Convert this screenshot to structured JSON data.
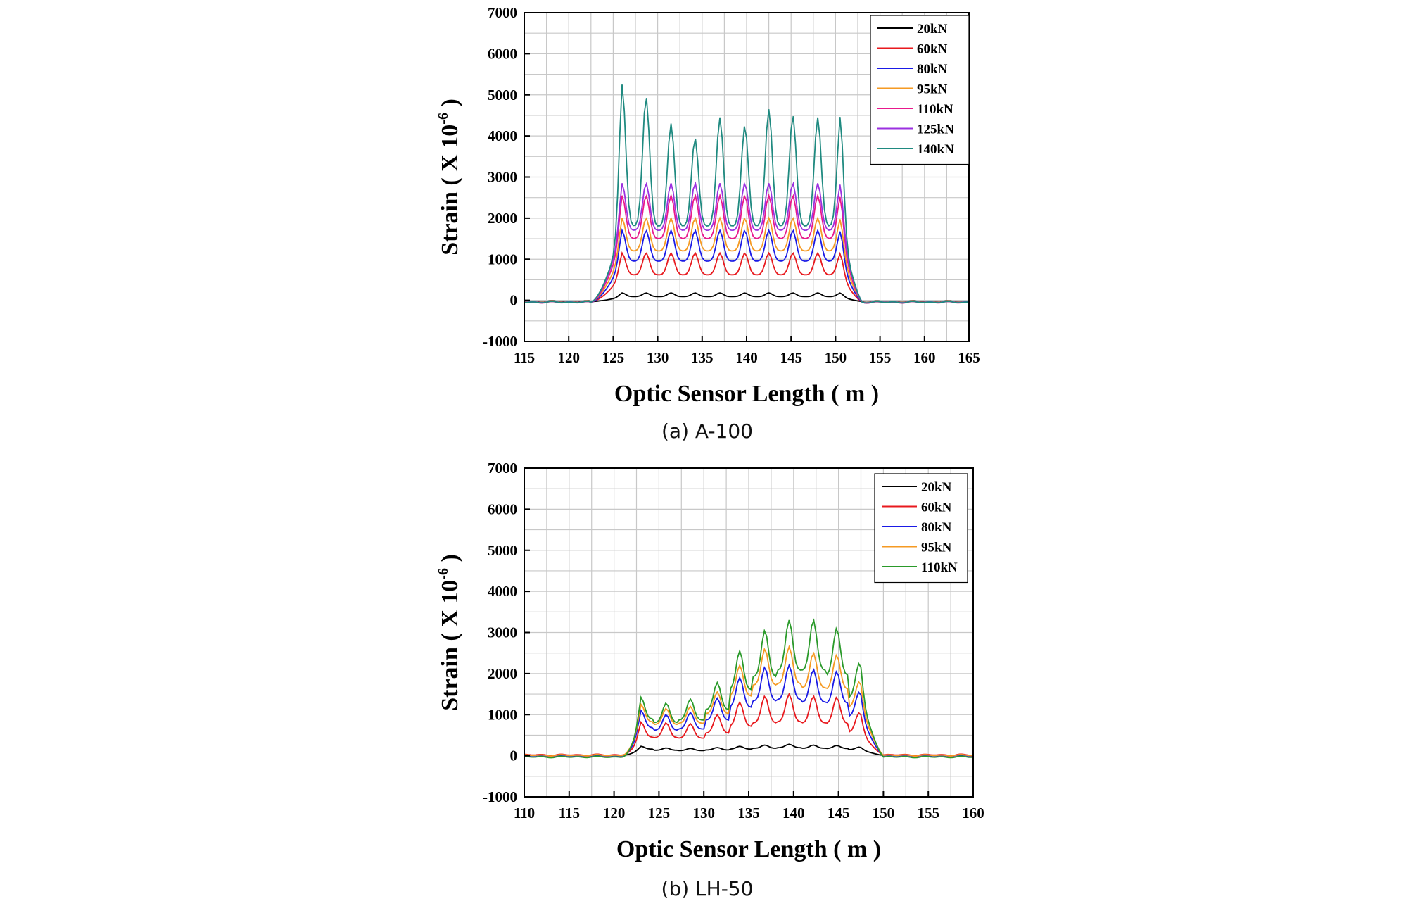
{
  "chart_data": [
    {
      "type": "line",
      "caption": "(a) A-100",
      "xlabel": "Optic Sensor Length ( m )",
      "ylabel_main": "Strain ( X 10",
      "ylabel_sup": "-6",
      "ylabel_close": " )",
      "xlim": [
        115,
        165
      ],
      "ylim": [
        -1000,
        7000
      ],
      "xticks": [
        "115",
        "120",
        "125",
        "130",
        "135",
        "140",
        "145",
        "150",
        "155",
        "160",
        "165"
      ],
      "yticks": [
        "-1000",
        "0",
        "1000",
        "2000",
        "3000",
        "4000",
        "5000",
        "6000",
        "7000"
      ],
      "grid": true,
      "legend_position": "top-right",
      "shape": {
        "rise": [
          122.5,
          126
        ],
        "fall": [
          150.5,
          153
        ],
        "peaks": [
          126,
          128.7,
          131.5,
          134.2,
          137,
          139.8,
          142.5,
          145.2,
          148,
          150.6
        ]
      },
      "series": [
        {
          "name": "20kN",
          "color": "#000000",
          "base": 90,
          "peak": 180,
          "baseline": -30
        },
        {
          "name": "60kN",
          "color": "#e8191e",
          "base": 620,
          "peak": 1150,
          "baseline": -40
        },
        {
          "name": "80kN",
          "color": "#1a1ae6",
          "base": 950,
          "peak": 1700,
          "baseline": -45
        },
        {
          "name": "95kN",
          "color": "#f59a23",
          "base": 1200,
          "peak": 2000,
          "baseline": -35
        },
        {
          "name": "110kN",
          "color": "#e8198c",
          "base": 1500,
          "peak": 2550,
          "baseline": -50
        },
        {
          "name": "125kN",
          "color": "#9b30e0",
          "base": 1700,
          "peak": 2850,
          "baseline": -40
        },
        {
          "name": "140kN",
          "color": "#1f8a80",
          "base": 1800,
          "peak": 4500,
          "baseline": -45,
          "peak_values": [
            5250,
            4950,
            4300,
            3950,
            4450,
            4250,
            4650,
            4500,
            4450,
            4550
          ]
        }
      ]
    },
    {
      "type": "line",
      "caption": "(b) LH-50",
      "xlabel": "Optic Sensor Length ( m )",
      "ylabel_main": "Strain ( X 10",
      "ylabel_sup": "-6",
      "ylabel_close": " )",
      "xlim": [
        110,
        160
      ],
      "ylim": [
        -1000,
        7000
      ],
      "xticks": [
        "110",
        "115",
        "120",
        "125",
        "130",
        "135",
        "140",
        "145",
        "150",
        "155",
        "160"
      ],
      "yticks": [
        "-1000",
        "0",
        "1000",
        "2000",
        "3000",
        "4000",
        "5000",
        "6000",
        "7000"
      ],
      "grid": true,
      "legend_position": "top-right",
      "shape": {
        "rise": [
          121,
          123
        ],
        "fall": [
          147.5,
          150
        ],
        "peaks": [
          123,
          125.8,
          128.5,
          131.5,
          134,
          136.8,
          139.5,
          142.2,
          144.8,
          147.3
        ]
      },
      "series": [
        {
          "name": "20kN",
          "color": "#000000",
          "peak_values": [
            230,
            190,
            180,
            200,
            230,
            260,
            280,
            260,
            250,
            210
          ],
          "trough_factor": 0.7,
          "baseline": 10
        },
        {
          "name": "60kN",
          "color": "#e8191e",
          "peak_values": [
            820,
            800,
            780,
            1000,
            1300,
            1450,
            1500,
            1450,
            1420,
            1050
          ],
          "trough_factor": 0.55,
          "baseline": 20
        },
        {
          "name": "80kN",
          "color": "#1a1ae6",
          "peak_values": [
            1100,
            1000,
            1050,
            1400,
            1900,
            2150,
            2200,
            2100,
            2050,
            1550
          ],
          "trough_factor": 0.62,
          "baseline": 0
        },
        {
          "name": "95kN",
          "color": "#f59a23",
          "peak_values": [
            1250,
            1150,
            1200,
            1550,
            2200,
            2600,
            2650,
            2500,
            2450,
            1800
          ],
          "trough_factor": 0.66,
          "baseline": 10
        },
        {
          "name": "110kN",
          "color": "#2a9a2a",
          "peak_values": [
            1420,
            1280,
            1380,
            1780,
            2550,
            3050,
            3300,
            3300,
            3100,
            2250
          ],
          "trough_factor": 0.63,
          "baseline": -30
        }
      ]
    }
  ]
}
